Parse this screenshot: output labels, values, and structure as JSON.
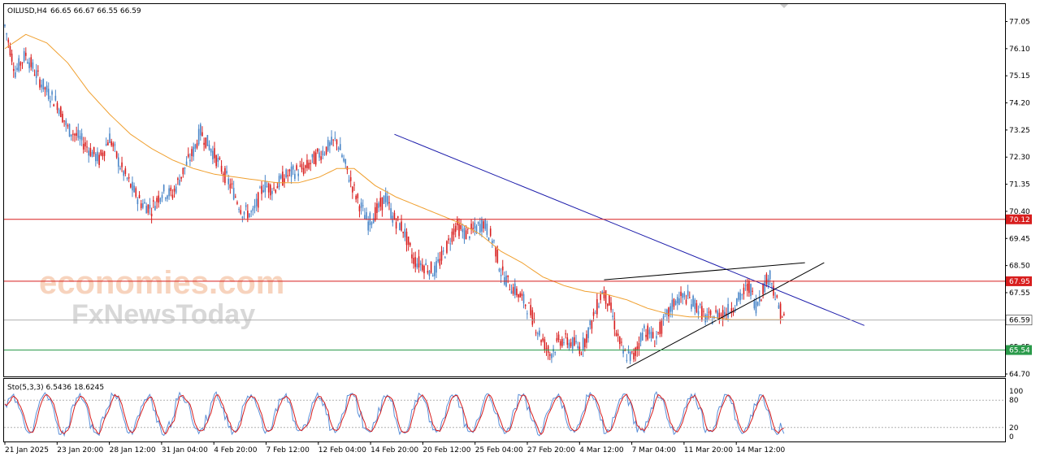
{
  "header": {
    "symbol": "OILUSD,H4",
    "ohlc": "66.65 66.67 66.55 66.59"
  },
  "watermark": {
    "line1": "economies.com",
    "line2": "FxNewsToday"
  },
  "colors": {
    "bull": "#4a86c8",
    "bear": "#d81e1e",
    "ma": "#f0a030",
    "trend_blue": "#1a1aaa",
    "h_red": "#d81e1e",
    "h_green": "#2a9a4a",
    "stoch_main": "#5a8fd8",
    "stoch_signal": "#d81e1e",
    "watermark_orange": "#f2b088",
    "watermark_gray": "#c8c8c8"
  },
  "chart_data": {
    "type": "candlestick",
    "price_axis": {
      "ticks": [
        "77.05",
        "76.10",
        "75.15",
        "74.20",
        "73.25",
        "72.30",
        "71.35",
        "70.40",
        "69.45",
        "68.50",
        "67.55",
        "66.60",
        "65.65",
        "64.70"
      ],
      "ylim": [
        64.5,
        77.3
      ]
    },
    "levels": [
      {
        "price": 70.12,
        "label": "70.12",
        "color": "#d81e1e",
        "style": "line"
      },
      {
        "price": 67.95,
        "label": "67.95",
        "color": "#d81e1e",
        "style": "line"
      },
      {
        "price": 66.59,
        "label": "66.59",
        "color": "#000000",
        "style": "current"
      },
      {
        "price": 65.54,
        "label": "65.54",
        "color": "#2a9a4a",
        "style": "line"
      }
    ],
    "x_labels": [
      "21 Jan 2025",
      "23 Jan 20:00",
      "28 Jan 12:00",
      "31 Jan 04:00",
      "4 Feb 20:00",
      "7 Feb 12:00",
      "12 Feb 04:00",
      "14 Feb 20:00",
      "20 Feb 12:00",
      "25 Feb 04:00",
      "27 Feb 20:00",
      "4 Mar 12:00",
      "7 Mar 04:00",
      "11 Mar 20:00",
      "14 Mar 12:00"
    ],
    "close_path": [
      [
        0,
        76.9
      ],
      [
        6,
        75.3
      ],
      [
        12,
        75.9
      ],
      [
        18,
        75.2
      ],
      [
        24,
        74.6
      ],
      [
        30,
        74.2
      ],
      [
        36,
        73.3
      ],
      [
        42,
        73.0
      ],
      [
        48,
        72.6
      ],
      [
        54,
        72.2
      ],
      [
        60,
        73.0
      ],
      [
        66,
        72.0
      ],
      [
        72,
        71.3
      ],
      [
        78,
        70.7
      ],
      [
        84,
        70.5
      ],
      [
        90,
        71.1
      ],
      [
        96,
        71.0
      ],
      [
        102,
        71.8
      ],
      [
        108,
        72.5
      ],
      [
        112,
        73.2
      ],
      [
        118,
        72.6
      ],
      [
        124,
        71.9
      ],
      [
        130,
        71.2
      ],
      [
        136,
        70.4
      ],
      [
        142,
        70.3
      ],
      [
        148,
        71.3
      ],
      [
        154,
        71.2
      ],
      [
        160,
        71.6
      ],
      [
        166,
        71.8
      ],
      [
        172,
        71.9
      ],
      [
        178,
        72.3
      ],
      [
        184,
        72.6
      ],
      [
        190,
        72.9
      ],
      [
        196,
        71.8
      ],
      [
        202,
        70.8
      ],
      [
        208,
        70.0
      ],
      [
        214,
        70.5
      ],
      [
        218,
        70.9
      ],
      [
        222,
        70.2
      ],
      [
        228,
        69.8
      ],
      [
        234,
        68.7
      ],
      [
        240,
        68.5
      ],
      [
        246,
        68.3
      ],
      [
        252,
        69.0
      ],
      [
        258,
        69.9
      ],
      [
        264,
        69.6
      ],
      [
        270,
        69.8
      ],
      [
        274,
        70.0
      ],
      [
        280,
        69.3
      ],
      [
        284,
        68.3
      ],
      [
        288,
        67.9
      ],
      [
        294,
        67.5
      ],
      [
        300,
        67.0
      ],
      [
        306,
        66.1
      ],
      [
        312,
        65.4
      ],
      [
        318,
        65.9
      ],
      [
        324,
        65.8
      ],
      [
        330,
        65.6
      ],
      [
        336,
        66.5
      ],
      [
        342,
        67.6
      ],
      [
        346,
        67.2
      ],
      [
        350,
        66.2
      ],
      [
        354,
        65.4
      ],
      [
        360,
        65.3
      ],
      [
        366,
        66.3
      ],
      [
        372,
        65.9
      ],
      [
        378,
        66.6
      ],
      [
        384,
        67.3
      ],
      [
        390,
        67.4
      ],
      [
        396,
        67.1
      ],
      [
        402,
        66.6
      ],
      [
        408,
        66.8
      ],
      [
        414,
        66.9
      ],
      [
        420,
        67.3
      ],
      [
        426,
        67.8
      ],
      [
        430,
        67.1
      ],
      [
        434,
        67.7
      ],
      [
        438,
        68.2
      ],
      [
        442,
        67.2
      ],
      [
        446,
        66.6
      ]
    ],
    "ma_path": [
      [
        0,
        76.1
      ],
      [
        12,
        76.6
      ],
      [
        24,
        76.3
      ],
      [
        36,
        75.6
      ],
      [
        48,
        74.6
      ],
      [
        60,
        73.8
      ],
      [
        72,
        73.1
      ],
      [
        84,
        72.6
      ],
      [
        96,
        72.2
      ],
      [
        108,
        71.9
      ],
      [
        120,
        71.7
      ],
      [
        132,
        71.6
      ],
      [
        144,
        71.5
      ],
      [
        156,
        71.4
      ],
      [
        168,
        71.4
      ],
      [
        180,
        71.6
      ],
      [
        190,
        71.9
      ],
      [
        200,
        71.9
      ],
      [
        212,
        71.3
      ],
      [
        224,
        70.9
      ],
      [
        236,
        70.6
      ],
      [
        248,
        70.3
      ],
      [
        260,
        70.0
      ],
      [
        272,
        69.6
      ],
      [
        284,
        69.0
      ],
      [
        296,
        68.6
      ],
      [
        308,
        68.1
      ],
      [
        320,
        67.8
      ],
      [
        332,
        67.6
      ],
      [
        344,
        67.5
      ],
      [
        356,
        67.3
      ],
      [
        368,
        67.0
      ],
      [
        380,
        66.8
      ],
      [
        392,
        66.7
      ],
      [
        404,
        66.7
      ],
      [
        416,
        66.6
      ],
      [
        428,
        66.6
      ],
      [
        436,
        66.6
      ],
      [
        446,
        66.6
      ]
    ],
    "trendlines": [
      {
        "name": "blue-downtrend",
        "color": "#1a1aaa",
        "from": [
          223,
          73.1
        ],
        "to": [
          492,
          66.4
        ]
      },
      {
        "name": "wedge-upper",
        "color": "#000000",
        "from": [
          343,
          68.0
        ],
        "to": [
          458,
          68.6
        ]
      },
      {
        "name": "wedge-lower",
        "color": "#000000",
        "from": [
          356,
          64.9
        ],
        "to": [
          469,
          68.6
        ]
      }
    ],
    "stochastic": {
      "label": "Sto(5,3,3) 6.5436 18.6245",
      "ticks": [
        "100",
        "80",
        "20",
        "0"
      ],
      "levels": [
        80,
        20
      ],
      "main": 6.5436,
      "signal": 18.6245
    },
    "grid": false,
    "legend": "none"
  }
}
